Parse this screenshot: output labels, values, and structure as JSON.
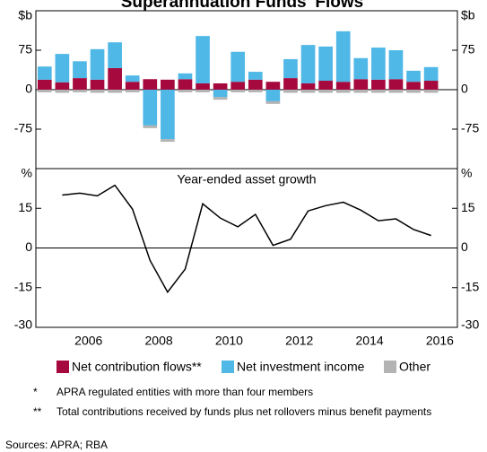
{
  "chart_data": [
    {
      "type": "bar",
      "title": "Superannuation Funds' Flows",
      "x": [
        2005.25,
        2005.75,
        2006.25,
        2006.75,
        2007.25,
        2007.75,
        2008.25,
        2008.75,
        2009.25,
        2009.75,
        2010.25,
        2010.75,
        2011.25,
        2011.75,
        2012.25,
        2012.75,
        2013.25,
        2013.75,
        2014.25,
        2014.75,
        2015.25,
        2015.75,
        2016.25
      ],
      "series": [
        {
          "name": "Net contribution flows**",
          "color": "#a6093d",
          "values": [
            19,
            14,
            22,
            19,
            41,
            15,
            20,
            19,
            20,
            12,
            12,
            15,
            19,
            15,
            22,
            12,
            17,
            15,
            20,
            19,
            20,
            15,
            17
          ]
        },
        {
          "name": "Net investment income",
          "color": "#4fb8e6",
          "values": [
            25,
            54,
            32,
            58,
            49,
            12,
            -68,
            -94,
            11,
            90,
            -14,
            57,
            15,
            -22,
            36,
            73,
            65,
            96,
            40,
            61,
            55,
            21,
            26
          ]
        },
        {
          "name": "Other",
          "color": "#b3b3b3",
          "values": [
            -5,
            -6,
            -5,
            -6,
            -6,
            -5,
            -5,
            -5,
            -5,
            -5,
            -5,
            -5,
            -5,
            -5,
            -6,
            -6,
            -6,
            -6,
            -6,
            -6,
            -6,
            -6,
            -6
          ]
        }
      ],
      "xlim": [
        2005,
        2017
      ],
      "ylim": [
        -150,
        150
      ],
      "yticks": [
        -75,
        0,
        75,
        {
          "value": 150,
          "label": "$b"
        }
      ]
    },
    {
      "type": "line",
      "annotation": "Year-ended asset growth",
      "x": [
        2005.75,
        2006.25,
        2006.75,
        2007.25,
        2007.75,
        2008.25,
        2008.75,
        2009.25,
        2009.75,
        2010.25,
        2010.75,
        2011.25,
        2011.75,
        2012.25,
        2012.75,
        2013.25,
        2013.75,
        2014.25,
        2014.75,
        2015.25,
        2015.75,
        2016.25
      ],
      "series": [
        {
          "color": "#000000",
          "values": [
            20,
            20.7,
            19.7,
            23.7,
            14.7,
            -4.7,
            -16.7,
            -8,
            16.7,
            11.3,
            8,
            12.7,
            1,
            3.3,
            14,
            16,
            17.3,
            14.3,
            10.3,
            11,
            7,
            4.7
          ]
        }
      ],
      "xlim": [
        2005,
        2017
      ],
      "ylim": [
        -30,
        30
      ],
      "yticks": [
        {
          "value": -30,
          "label": "-30"
        },
        -15,
        0,
        15,
        {
          "value": 30,
          "label": "%"
        }
      ],
      "xticks": [
        {
          "value": 2006.5,
          "label": "2006"
        },
        {
          "value": 2008.5,
          "label": "2008"
        },
        {
          "value": 2010.5,
          "label": "2010"
        },
        {
          "value": 2012.5,
          "label": "2012"
        },
        {
          "value": 2014.5,
          "label": "2014"
        },
        {
          "value": 2016.5,
          "label": "2016"
        }
      ]
    }
  ],
  "footnotes": [
    {
      "marker": "*",
      "text": "APRA regulated entities with more than four members"
    },
    {
      "marker": "**",
      "text": "Total contributions received by funds plus net rollovers minus benefit payments"
    }
  ],
  "sources": "Sources:  APRA; RBA"
}
